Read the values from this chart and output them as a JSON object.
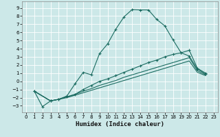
{
  "xlabel": "Humidex (Indice chaleur)",
  "bg_color": "#cce8e8",
  "grid_color": "#ffffff",
  "line_color": "#1a6b60",
  "xlim": [
    -0.5,
    23.5
  ],
  "ylim": [
    -3.8,
    9.8
  ],
  "xticks": [
    0,
    1,
    2,
    3,
    4,
    5,
    6,
    7,
    8,
    9,
    10,
    11,
    12,
    13,
    14,
    15,
    16,
    17,
    18,
    19,
    20,
    21,
    22,
    23
  ],
  "yticks": [
    -3,
    -2,
    -1,
    0,
    1,
    2,
    3,
    4,
    5,
    6,
    7,
    8,
    9
  ],
  "curve1_x": [
    1,
    2,
    3,
    4,
    5,
    6,
    7,
    8,
    9,
    10,
    11,
    12,
    13,
    14,
    15,
    16,
    17,
    18,
    19,
    20,
    21,
    22
  ],
  "curve1_y": [
    -1.2,
    -3.1,
    -2.4,
    -2.2,
    -1.8,
    -0.3,
    1.1,
    0.8,
    3.4,
    4.6,
    6.4,
    7.9,
    8.8,
    8.75,
    8.75,
    7.6,
    6.8,
    5.1,
    3.5,
    3.1,
    1.5,
    0.9
  ],
  "curve2_x": [
    1,
    3,
    4,
    5,
    6,
    7,
    8,
    9,
    10,
    11,
    12,
    13,
    14,
    15,
    16,
    17,
    18,
    19,
    20,
    21,
    22
  ],
  "curve2_y": [
    -1.2,
    -2.4,
    -2.2,
    -1.9,
    -1.6,
    -1.0,
    -0.5,
    0.0,
    0.3,
    0.7,
    1.1,
    1.5,
    1.9,
    2.3,
    2.6,
    3.0,
    3.3,
    3.5,
    3.8,
    1.6,
    1.0
  ],
  "curve3_x": [
    1,
    3,
    4,
    5,
    6,
    7,
    8,
    9,
    10,
    11,
    12,
    13,
    14,
    15,
    16,
    17,
    18,
    19,
    20,
    21,
    22
  ],
  "curve3_y": [
    -1.2,
    -2.4,
    -2.2,
    -1.9,
    -1.6,
    -1.2,
    -0.9,
    -0.5,
    -0.2,
    0.1,
    0.5,
    0.8,
    1.1,
    1.4,
    1.7,
    2.0,
    2.3,
    2.6,
    2.9,
    1.3,
    0.8
  ],
  "curve4_x": [
    1,
    3,
    4,
    5,
    6,
    7,
    8,
    9,
    10,
    11,
    12,
    13,
    14,
    15,
    16,
    17,
    18,
    19,
    20,
    21,
    22
  ],
  "curve4_y": [
    -1.2,
    -2.4,
    -2.2,
    -2.0,
    -1.7,
    -1.4,
    -1.1,
    -0.8,
    -0.5,
    -0.2,
    0.1,
    0.4,
    0.7,
    1.0,
    1.3,
    1.6,
    1.9,
    2.2,
    2.5,
    1.1,
    0.7
  ]
}
